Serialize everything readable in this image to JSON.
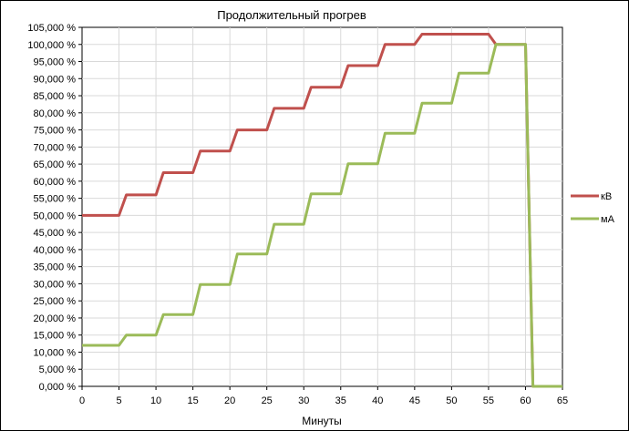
{
  "chart_data": {
    "type": "line",
    "title": "Продолжительный прогрев",
    "xlabel": "Минуты",
    "ylabel": "",
    "xlim": [
      0,
      65
    ],
    "ylim": [
      0,
      105
    ],
    "x_ticks": [
      "0",
      "5",
      "10",
      "15",
      "20",
      "25",
      "30",
      "35",
      "40",
      "45",
      "50",
      "55",
      "60",
      "65"
    ],
    "y_ticks": [
      "0,000 %",
      "5,000 %",
      "10,000 %",
      "15,000 %",
      "20,000 %",
      "25,000 %",
      "30,000 %",
      "35,000 %",
      "40,000 %",
      "45,000 %",
      "50,000 %",
      "55,000 %",
      "60,000 %",
      "65,000 %",
      "70,000 %",
      "75,000 %",
      "80,000 %",
      "85,000 %",
      "90,000 %",
      "95,000 %",
      "100,000 %",
      "105,000 %"
    ],
    "grid": true,
    "legend_position": "right",
    "series": [
      {
        "name": "кВ",
        "color": "#C0504D",
        "points": [
          [
            0,
            50
          ],
          [
            5,
            50
          ],
          [
            6,
            56
          ],
          [
            10,
            56
          ],
          [
            11,
            62.5
          ],
          [
            15,
            62.5
          ],
          [
            16,
            68.8
          ],
          [
            20,
            68.8
          ],
          [
            21,
            75
          ],
          [
            25,
            75
          ],
          [
            26,
            81.3
          ],
          [
            30,
            81.3
          ],
          [
            31,
            87.5
          ],
          [
            35,
            87.5
          ],
          [
            36,
            93.8
          ],
          [
            40,
            93.8
          ],
          [
            41,
            100
          ],
          [
            45,
            100
          ],
          [
            46,
            103
          ],
          [
            55,
            103
          ],
          [
            56,
            100
          ],
          [
            60,
            100
          ],
          [
            61,
            0
          ],
          [
            65,
            0
          ]
        ]
      },
      {
        "name": "мА",
        "color": "#9BBB59",
        "points": [
          [
            0,
            12
          ],
          [
            5,
            12
          ],
          [
            6,
            15
          ],
          [
            10,
            15
          ],
          [
            11,
            21
          ],
          [
            15,
            21
          ],
          [
            16,
            29.8
          ],
          [
            20,
            29.8
          ],
          [
            21,
            38.7
          ],
          [
            25,
            38.7
          ],
          [
            26,
            47.4
          ],
          [
            30,
            47.4
          ],
          [
            31,
            56.3
          ],
          [
            35,
            56.3
          ],
          [
            36,
            65.1
          ],
          [
            40,
            65.1
          ],
          [
            41,
            74
          ],
          [
            45,
            74
          ],
          [
            46,
            82.8
          ],
          [
            50,
            82.8
          ],
          [
            51,
            91.6
          ],
          [
            55,
            91.6
          ],
          [
            56,
            100
          ],
          [
            60,
            100
          ],
          [
            61,
            0
          ],
          [
            65,
            0
          ]
        ]
      }
    ]
  }
}
